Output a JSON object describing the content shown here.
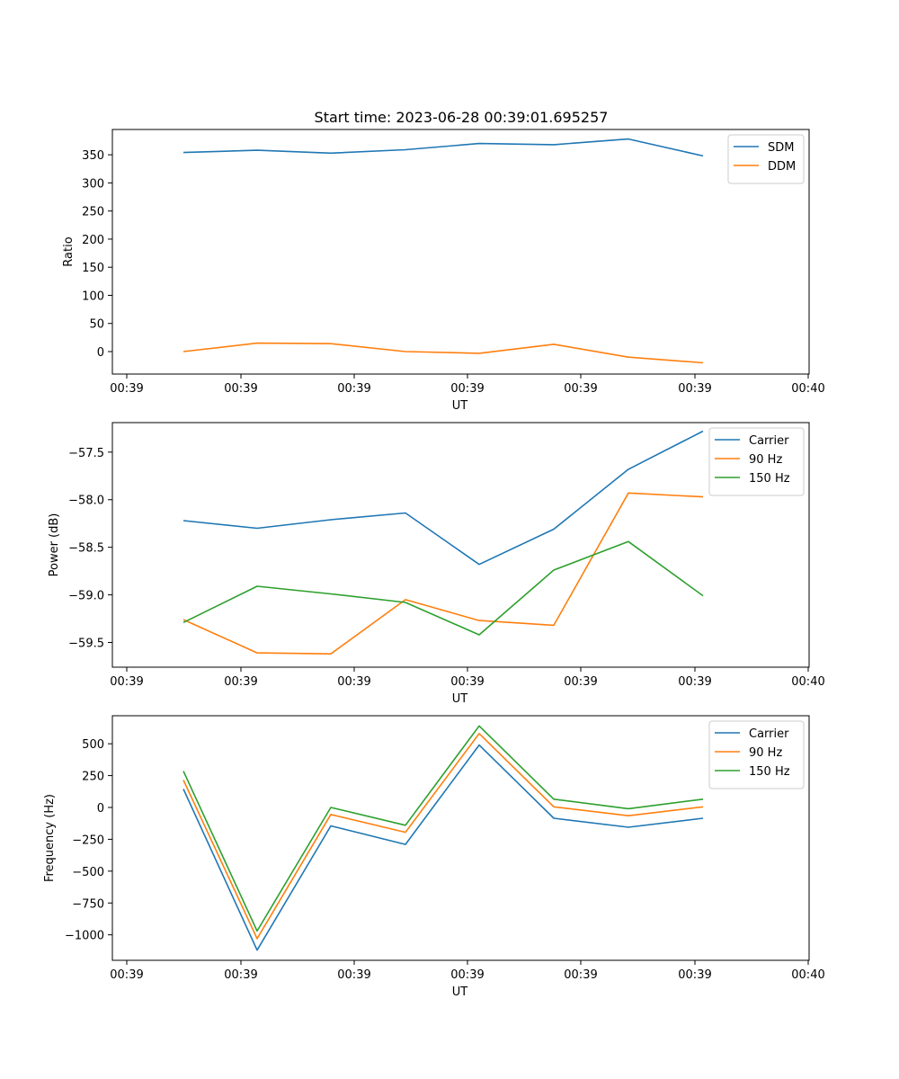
{
  "figure": {
    "title": "Start time: 2023-06-28 00:39:01.695257"
  },
  "chart_data": [
    {
      "type": "line",
      "title": "Start time: 2023-06-28 00:39:01.695257",
      "xlabel": "UT",
      "ylabel": "Ratio",
      "x_tick_labels": [
        "00:39",
        "00:39",
        "00:39",
        "00:39",
        "00:39",
        "00:39",
        "00:40"
      ],
      "y_ticks": [
        0,
        50,
        100,
        150,
        200,
        250,
        300,
        350
      ],
      "ylim": [
        -40,
        395
      ],
      "legend_position": "top-right",
      "series": [
        {
          "name": "SDM",
          "color": "#1f77b4",
          "values": [
            354,
            358,
            353,
            359,
            370,
            368,
            378,
            348
          ]
        },
        {
          "name": "DDM",
          "color": "#ff7f0e",
          "values": [
            0,
            15,
            14,
            0,
            -3,
            13,
            -10,
            -20
          ]
        }
      ]
    },
    {
      "type": "line",
      "title": "",
      "xlabel": "UT",
      "ylabel": "Power (dB)",
      "x_tick_labels": [
        "00:39",
        "00:39",
        "00:39",
        "00:39",
        "00:39",
        "00:39",
        "00:40"
      ],
      "y_ticks": [
        -59.5,
        -59.0,
        -58.5,
        -58.0,
        -57.5
      ],
      "y_tick_labels": [
        "−59.5",
        "−59.0",
        "−58.5",
        "−58.0",
        "−57.5"
      ],
      "ylim": [
        -59.76,
        -57.19
      ],
      "legend_position": "top-right",
      "series": [
        {
          "name": "Carrier",
          "color": "#1f77b4",
          "values": [
            -58.22,
            -58.3,
            -58.21,
            -58.14,
            -58.68,
            -58.31,
            -57.68,
            -57.28
          ]
        },
        {
          "name": "90 Hz",
          "color": "#ff7f0e",
          "values": [
            -59.26,
            -59.61,
            -59.62,
            -59.05,
            -59.27,
            -59.32,
            -57.93,
            -57.97
          ]
        },
        {
          "name": "150 Hz",
          "color": "#2ca02c",
          "values": [
            -59.29,
            -58.91,
            -58.99,
            -59.08,
            -59.42,
            -58.74,
            -58.44,
            -59.01
          ]
        }
      ]
    },
    {
      "type": "line",
      "title": "",
      "xlabel": "UT",
      "ylabel": "Frequency (Hz)",
      "x_tick_labels": [
        "00:39",
        "00:39",
        "00:39",
        "00:39",
        "00:39",
        "00:39",
        "00:40"
      ],
      "y_ticks": [
        -1000,
        -750,
        -500,
        -250,
        0,
        250,
        500
      ],
      "y_tick_labels": [
        "−1000",
        "−750",
        "−500",
        "−250",
        "0",
        "250",
        "500"
      ],
      "ylim": [
        -1200,
        720
      ],
      "legend_position": "top-right",
      "series": [
        {
          "name": "Carrier",
          "color": "#1f77b4",
          "values": [
            145,
            -1120,
            -145,
            -290,
            490,
            -85,
            -155,
            -85
          ]
        },
        {
          "name": "90 Hz",
          "color": "#ff7f0e",
          "values": [
            215,
            -1030,
            -55,
            -195,
            580,
            5,
            -65,
            5
          ]
        },
        {
          "name": "150 Hz",
          "color": "#2ca02c",
          "values": [
            285,
            -970,
            0,
            -140,
            640,
            65,
            -10,
            65
          ]
        }
      ]
    }
  ]
}
